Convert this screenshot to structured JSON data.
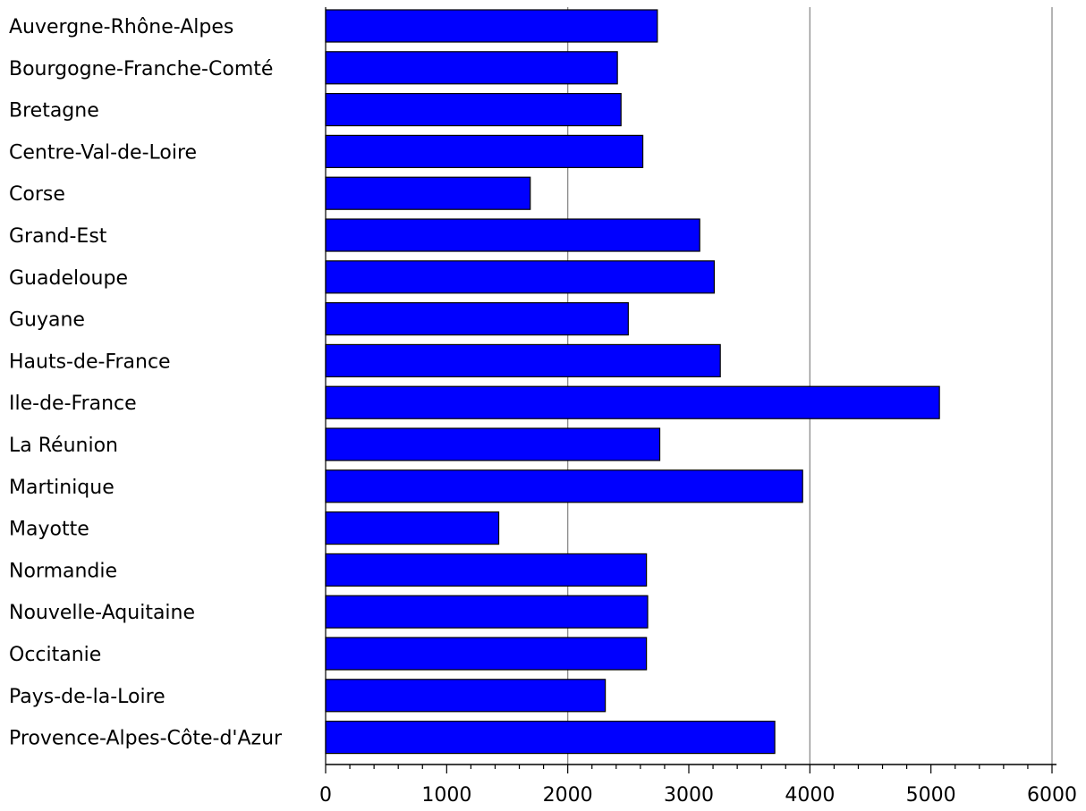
{
  "chart_data": {
    "type": "bar",
    "orientation": "horizontal",
    "title": "",
    "xlabel": "",
    "ylabel": "",
    "categories": [
      "Auvergne-Rhône-Alpes",
      "Bourgogne-Franche-Comté",
      "Bretagne",
      "Centre-Val-de-Loire",
      "Corse",
      "Grand-Est",
      "Guadeloupe",
      "Guyane",
      "Hauts-de-France",
      "Ile-de-France",
      "La Réunion",
      "Martinique",
      "Mayotte",
      "Normandie",
      "Nouvelle-Aquitaine",
      "Occitanie",
      "Pays-de-la-Loire",
      "Provence-Alpes-Côte-d'Azur"
    ],
    "values": [
      2740,
      2410,
      2440,
      2620,
      1690,
      3090,
      3210,
      2500,
      3260,
      5070,
      2760,
      3940,
      1430,
      2650,
      2660,
      2650,
      2310,
      3710
    ],
    "xlim": [
      0,
      6000
    ],
    "xticks": [
      "0",
      "1000",
      "2000",
      "3000",
      "4000",
      "5000",
      "6000"
    ],
    "gridlines_at": [
      2000,
      4000,
      6000
    ],
    "bar_color": "#0000ff",
    "grid": true,
    "legend": "none"
  }
}
